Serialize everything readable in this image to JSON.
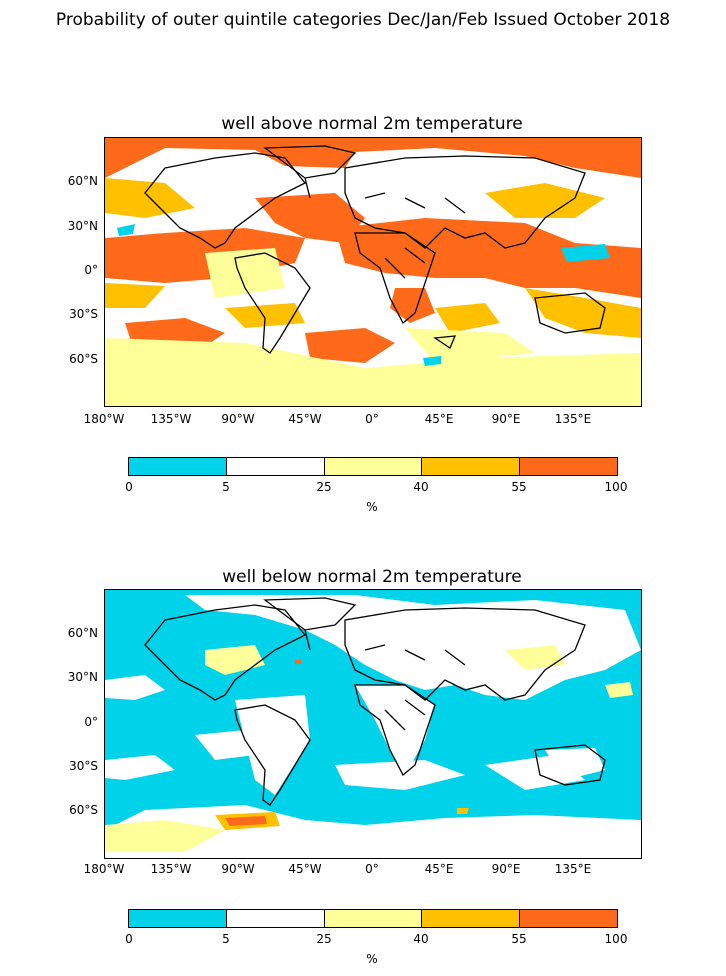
{
  "suptitle": "Probability of outer quintile categories Dec/Jan/Feb Issued October 2018",
  "colors": {
    "c0_5": "#00d2e9",
    "c5_25": "#ffffff",
    "c25_40": "#ffff99",
    "c40_55": "#ffc000",
    "c55_100": "#ff6a1a",
    "land_outline": "#000000"
  },
  "panels": [
    {
      "title": "well above normal 2m temperature",
      "dominant_category": "55-100"
    },
    {
      "title": "well below normal 2m temperature",
      "dominant_category": "0-5"
    }
  ],
  "axes": {
    "lat_ticks": [
      "60°N",
      "30°N",
      "0°",
      "30°S",
      "60°S"
    ],
    "lon_ticks": [
      "180°W",
      "135°W",
      "90°W",
      "45°W",
      "0°",
      "45°E",
      "90°E",
      "135°E"
    ]
  },
  "colorbar": {
    "boundaries": [
      "0",
      "5",
      "25",
      "40",
      "55",
      "100"
    ],
    "unit": "%"
  }
}
